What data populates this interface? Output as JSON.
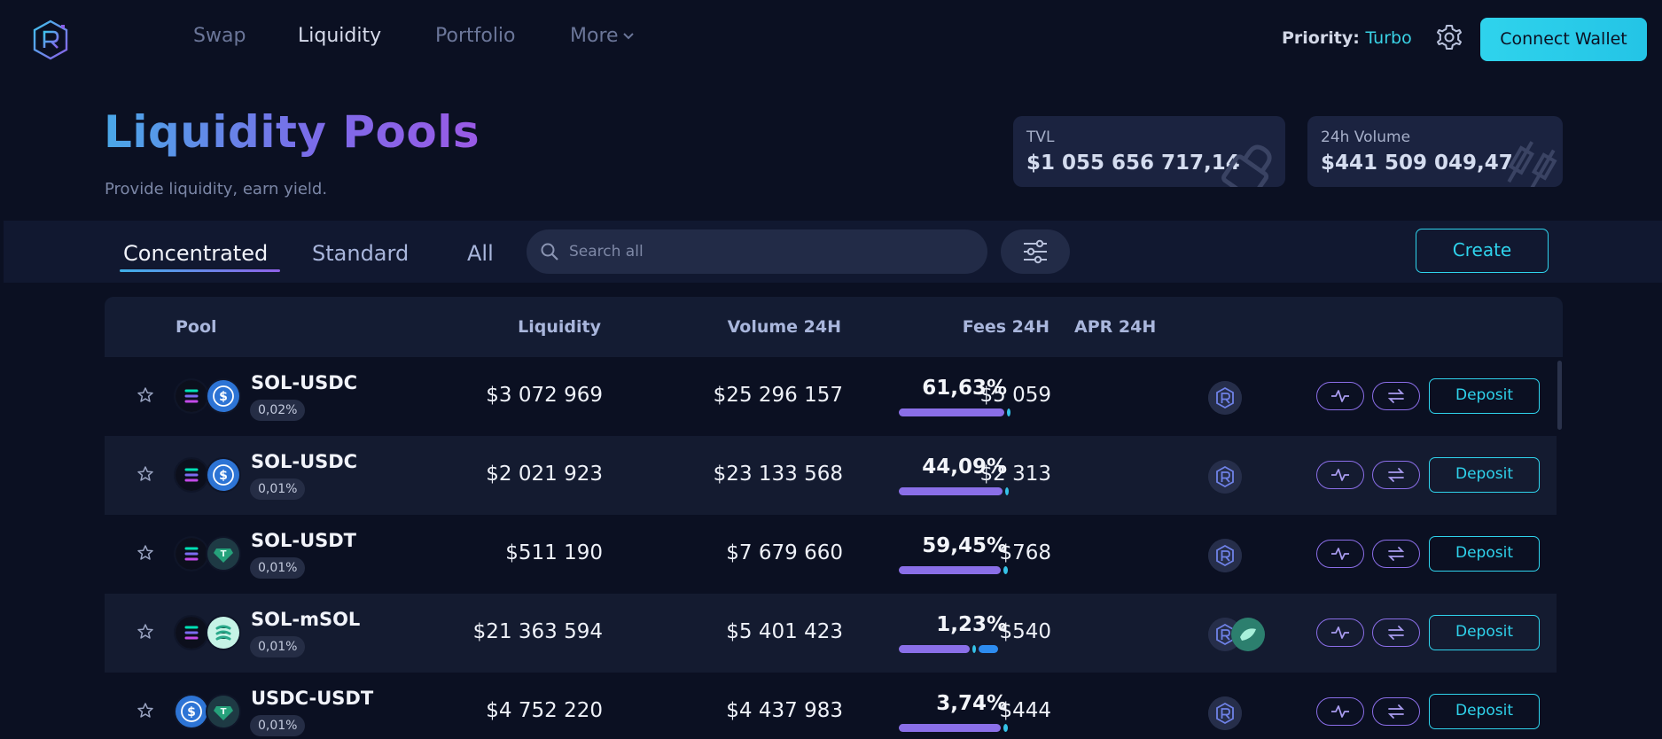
{
  "nav": {
    "items": [
      {
        "label": "Swap",
        "active": false
      },
      {
        "label": "Liquidity",
        "active": true
      },
      {
        "label": "Portfolio",
        "active": false
      },
      {
        "label": "More",
        "active": false
      }
    ],
    "priority_label": "Priority:",
    "priority_value": "Turbo",
    "connect_label": "Connect Wallet"
  },
  "header": {
    "title": "Liquidity Pools",
    "subtitle": "Provide liquidity, earn yield.",
    "tvl_label": "TVL",
    "tvl_value": "$1 055 656 717,14",
    "volume_label": "24h Volume",
    "volume_value": "$441 509 049,47"
  },
  "toolbar": {
    "tabs": [
      {
        "label": "Concentrated",
        "active": true
      },
      {
        "label": "Standard",
        "active": false
      },
      {
        "label": "All",
        "active": false
      }
    ],
    "search_placeholder": "Search all",
    "create_label": "Create"
  },
  "table": {
    "columns": [
      "Pool",
      "Liquidity",
      "Volume 24H",
      "Fees 24H",
      "APR 24H"
    ],
    "deposit_label": "Deposit",
    "rows": [
      {
        "pair": "SOL-USDC",
        "fee": "0,02%",
        "liquidity": "$3 072 969",
        "volume": "$25 296 157",
        "fees": "$5 059",
        "apr": "61,63%",
        "tokens": [
          "sol",
          "usdc"
        ],
        "rewards": [
          "ray"
        ],
        "apr_split": [
          0.97,
          0.03
        ]
      },
      {
        "pair": "SOL-USDC",
        "fee": "0,01%",
        "liquidity": "$2 021 923",
        "volume": "$23 133 568",
        "fees": "$2 313",
        "apr": "44,09%",
        "tokens": [
          "sol",
          "usdc"
        ],
        "rewards": [
          "ray"
        ],
        "apr_split": [
          0.95,
          0.05
        ]
      },
      {
        "pair": "SOL-USDT",
        "fee": "0,01%",
        "liquidity": "$511 190",
        "volume": "$7 679 660",
        "fees": "$768",
        "apr": "59,45%",
        "tokens": [
          "sol",
          "usdt"
        ],
        "rewards": [
          "ray"
        ],
        "apr_split": [
          0.94,
          0.06
        ]
      },
      {
        "pair": "SOL-mSOL",
        "fee": "0,01%",
        "liquidity": "$21 363 594",
        "volume": "$5 401 423",
        "fees": "$540",
        "apr": "1,23%",
        "tokens": [
          "sol",
          "msol"
        ],
        "rewards": [
          "ray",
          "msol-reward"
        ],
        "apr_split": [
          0.66,
          0.03,
          0.2
        ]
      },
      {
        "pair": "USDC-USDT",
        "fee": "0,01%",
        "liquidity": "$4 752 220",
        "volume": "$4 437 983",
        "fees": "$444",
        "apr": "3,74%",
        "tokens": [
          "usdc",
          "usdt"
        ],
        "rewards": [
          "ray"
        ],
        "apr_split": [
          0.94,
          0.06
        ]
      }
    ]
  },
  "colors": {
    "accent": "#2fd3ec",
    "purple": "#8b6ee8",
    "background": "#0b1022"
  }
}
